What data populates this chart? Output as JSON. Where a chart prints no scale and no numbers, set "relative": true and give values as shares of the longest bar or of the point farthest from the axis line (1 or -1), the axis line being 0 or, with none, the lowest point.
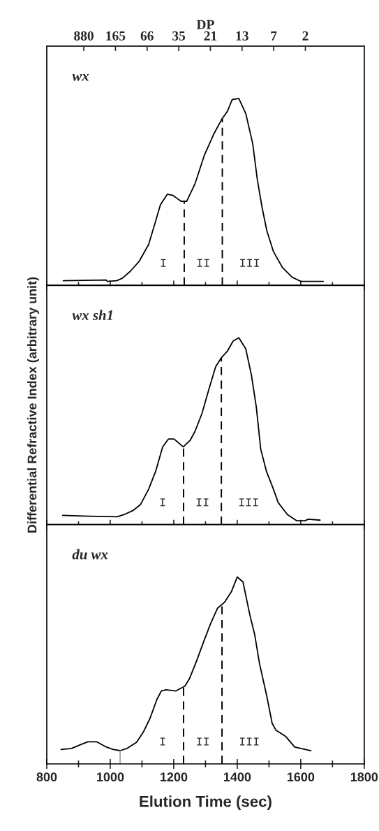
{
  "chart_data": [
    {
      "type": "line",
      "title": "wx",
      "relative": true,
      "x2label": "DP",
      "xlim": [
        800,
        1800
      ],
      "xticks": [
        800,
        {
          "value": 900,
          "label": null
        },
        1000,
        {
          "value": 1100,
          "label": null
        },
        1200,
        {
          "value": 1300,
          "label": null
        },
        1400,
        {
          "value": 1500,
          "label": null
        },
        1600,
        {
          "value": 1700,
          "label": null
        },
        1800
      ],
      "tick_labels": false,
      "series": [
        {
          "color": "#000000",
          "x": [
            852,
            987,
            991,
            1020,
            1038,
            1063,
            1092,
            1121,
            1143,
            1158,
            1180,
            1198,
            1223,
            1241,
            1267,
            1296,
            1325,
            1351,
            1369,
            1384,
            1405,
            1427,
            1449,
            1463,
            1478,
            1493,
            1514,
            1543,
            1573,
            1601,
            1671
          ],
          "values": [
            0.025,
            0.029,
            0.021,
            0.025,
            0.038,
            0.075,
            0.131,
            0.219,
            0.344,
            0.431,
            0.488,
            0.481,
            0.45,
            0.45,
            0.544,
            0.694,
            0.806,
            0.888,
            0.931,
            0.994,
            1.0,
            0.919,
            0.756,
            0.569,
            0.419,
            0.294,
            0.181,
            0.094,
            0.044,
            0.021,
            0.021
          ]
        }
      ],
      "ref_lines": [
        {
          "axis": "x",
          "value": 1233,
          "line_style": "dashed",
          "color": "#000000"
        },
        {
          "axis": "x",
          "value": 1353,
          "line_style": "dashed",
          "color": "#000000"
        }
      ],
      "annotations": [
        "I",
        "II",
        "III",
        "880",
        "165",
        "66",
        "35",
        "21",
        "13",
        "7",
        "2"
      ]
    },
    {
      "type": "line",
      "title": "wx sh1",
      "relative": true,
      "ylabel": "Differential Refractive Index (arbitrary unit)",
      "xlim": [
        800,
        1800
      ],
      "xticks": [
        800,
        {
          "value": 900,
          "label": null
        },
        1000,
        {
          "value": 1100,
          "label": null
        },
        1200,
        {
          "value": 1300,
          "label": null
        },
        1400,
        {
          "value": 1500,
          "label": null
        },
        1600,
        {
          "value": 1700,
          "label": null
        },
        1800
      ],
      "tick_labels": false,
      "series": [
        {
          "color": "#000000",
          "x": [
            850,
            934,
            1022,
            1044,
            1073,
            1095,
            1121,
            1143,
            1165,
            1183,
            1201,
            1230,
            1252,
            1267,
            1289,
            1311,
            1332,
            1350,
            1369,
            1387,
            1405,
            1427,
            1445,
            1460,
            1474,
            1492,
            1514,
            1529,
            1558,
            1587,
            1613,
            1624,
            1661
          ],
          "values": [
            0.05,
            0.045,
            0.042,
            0.054,
            0.077,
            0.107,
            0.19,
            0.285,
            0.416,
            0.458,
            0.458,
            0.416,
            0.452,
            0.499,
            0.595,
            0.726,
            0.845,
            0.893,
            0.928,
            0.982,
            1.0,
            0.94,
            0.797,
            0.63,
            0.404,
            0.285,
            0.19,
            0.118,
            0.054,
            0.021,
            0.021,
            0.029,
            0.024
          ]
        }
      ],
      "ref_lines": [
        {
          "axis": "x",
          "value": 1231,
          "line_style": "dashed",
          "color": "#000000"
        },
        {
          "axis": "x",
          "value": 1350,
          "line_style": "dashed",
          "color": "#000000"
        }
      ],
      "annotations": [
        "I",
        "II",
        "III"
      ]
    },
    {
      "type": "line",
      "title": "du wx",
      "relative": true,
      "xlabel": "Elution Time (sec)",
      "xlim": [
        800,
        1800
      ],
      "xticks": [
        800,
        {
          "value": 900,
          "label": null
        },
        1000,
        {
          "value": 1100,
          "label": null
        },
        1200,
        {
          "value": 1300,
          "label": null
        },
        1400,
        {
          "value": 1500,
          "label": null
        },
        1600,
        {
          "value": 1700,
          "label": null
        },
        1800
      ],
      "tick_labels": "x",
      "series": [
        {
          "color": "#000000",
          "x": [
            845,
            878,
            907,
            929,
            958,
            988,
            1010,
            1031,
            1053,
            1083,
            1104,
            1125,
            1147,
            1161,
            1176,
            1206,
            1235,
            1249,
            1272,
            1294,
            1316,
            1338,
            1360,
            1382,
            1400,
            1418,
            1440,
            1455,
            1470,
            1492,
            1510,
            1522,
            1552,
            1581,
            1632
          ],
          "values": [
            0.077,
            0.083,
            0.103,
            0.118,
            0.118,
            0.09,
            0.077,
            0.071,
            0.083,
            0.116,
            0.17,
            0.243,
            0.345,
            0.39,
            0.397,
            0.39,
            0.416,
            0.454,
            0.551,
            0.653,
            0.75,
            0.833,
            0.865,
            0.923,
            1.0,
            0.974,
            0.795,
            0.692,
            0.538,
            0.371,
            0.217,
            0.18,
            0.148,
            0.09,
            0.071
          ]
        },
        {
          "color": "#888888",
          "x": [
            1031,
            1031
          ],
          "values": [
            0,
            0.071
          ]
        }
      ],
      "ref_lines": [
        {
          "axis": "x",
          "value": 1231,
          "line_style": "dashed",
          "color": "#000000"
        },
        {
          "axis": "x",
          "value": 1352,
          "line_style": "dashed",
          "color": "#000000"
        }
      ],
      "annotations": [
        "I",
        "II",
        "III"
      ]
    }
  ]
}
